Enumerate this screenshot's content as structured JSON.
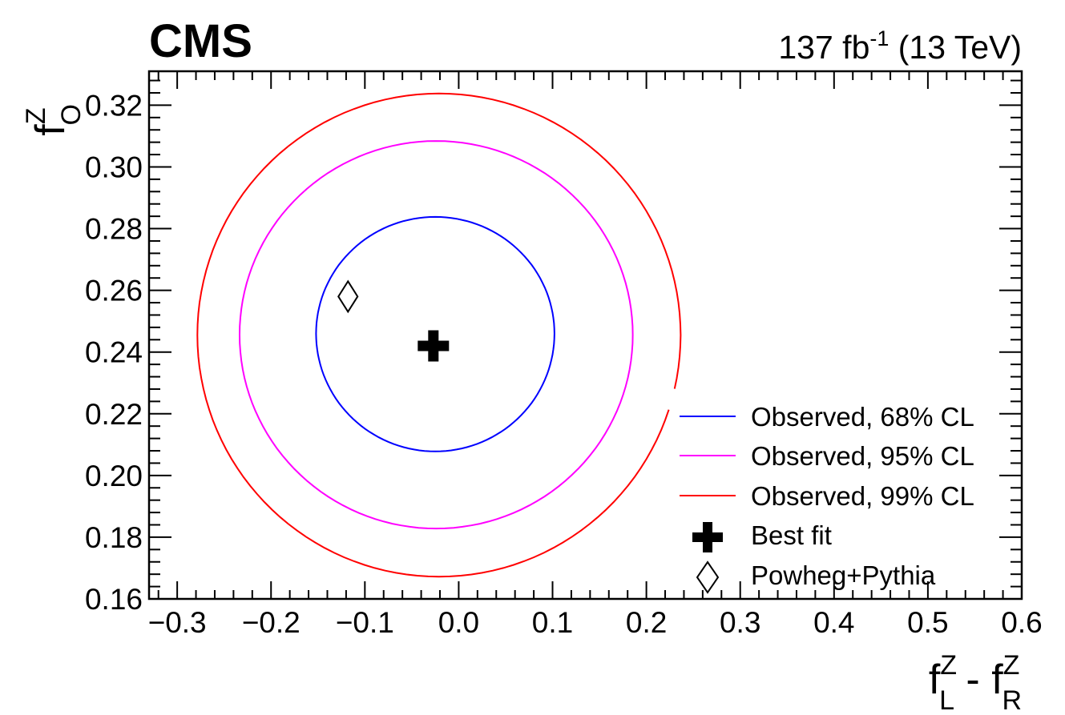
{
  "chart_data": {
    "type": "contour",
    "experiment_label": "CMS",
    "lumi_label": {
      "value": "137 fb",
      "exponent": "-1",
      "energy": " (13 TeV)"
    },
    "xlabel": {
      "a": "f",
      "a_sup": "Z",
      "a_sub": "L",
      "sep": " - ",
      "b": "f",
      "b_sup": "Z",
      "b_sub": "R"
    },
    "ylabel": {
      "a": "f",
      "a_sup": "Z",
      "a_sub": "O"
    },
    "xlim": [
      -0.33,
      0.6
    ],
    "ylim": [
      0.16,
      0.331
    ],
    "x_ticks": [
      -0.3,
      -0.2,
      -0.1,
      0.0,
      0.1,
      0.2,
      0.3,
      0.4,
      0.5,
      0.6
    ],
    "x_tick_labels": [
      "−0.3",
      "−0.2",
      "−0.1",
      "0.0",
      "0.1",
      "0.2",
      "0.3",
      "0.4",
      "0.5",
      "0.6"
    ],
    "y_ticks": [
      0.16,
      0.18,
      0.2,
      0.22,
      0.24,
      0.26,
      0.28,
      0.3,
      0.32
    ],
    "y_tick_labels": [
      "0.16",
      "0.18",
      "0.20",
      "0.22",
      "0.24",
      "0.26",
      "0.28",
      "0.30",
      "0.32"
    ],
    "contours": [
      {
        "name": "Observed, 68% CL",
        "color": "#0000ff",
        "center": [
          -0.025,
          0.246
        ],
        "rx": 0.127,
        "ry_top": 0.0378,
        "ry_bottom": 0.0382
      },
      {
        "name": "Observed, 95% CL",
        "color": "#ff00ff",
        "center": [
          -0.024,
          0.2456
        ],
        "rx": 0.2095,
        "ry_top": 0.0628,
        "ry_bottom": 0.0628
      },
      {
        "name": "Observed, 99% CL",
        "color": "#ff0000",
        "center": [
          -0.021,
          0.2455
        ],
        "rx": 0.2575,
        "ry_top": 0.0783,
        "ry_bottom": 0.0783,
        "gap_x": 0.226
      }
    ],
    "best_fit": {
      "name": "Best fit",
      "x": -0.027,
      "y": 0.242,
      "marker": "thick-cross"
    },
    "prediction": {
      "name": "Powheg+Pythia",
      "x": -0.118,
      "y": 0.258,
      "marker": "open-diamond"
    },
    "legend_position": "bottom-right"
  }
}
